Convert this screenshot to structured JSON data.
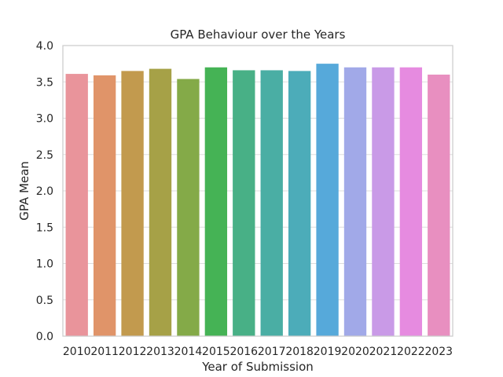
{
  "chart_data": {
    "type": "bar",
    "title": "GPA Behaviour over the Years",
    "xlabel": "Year of Submission",
    "ylabel": "GPA Mean",
    "ylim": [
      0,
      4.0
    ],
    "yticks": [
      "0.0",
      "0.5",
      "1.0",
      "1.5",
      "2.0",
      "2.5",
      "3.0",
      "3.5",
      "4.0"
    ],
    "grid": "horizontal",
    "categories": [
      "2010",
      "2011",
      "2012",
      "2013",
      "2014",
      "2015",
      "2016",
      "2017",
      "2018",
      "2019",
      "2020",
      "2021",
      "2022",
      "2023"
    ],
    "values": [
      3.61,
      3.59,
      3.65,
      3.68,
      3.54,
      3.7,
      3.66,
      3.66,
      3.65,
      3.75,
      3.7,
      3.7,
      3.7,
      3.6
    ],
    "colors": [
      "#e9949b",
      "#e09469",
      "#c29a4e",
      "#a6a147",
      "#84aa48",
      "#45b355",
      "#48b086",
      "#4aaea4",
      "#4cacb9",
      "#56a9da",
      "#a1a9e8",
      "#c99ae7",
      "#e68be0",
      "#e88fc0"
    ]
  }
}
